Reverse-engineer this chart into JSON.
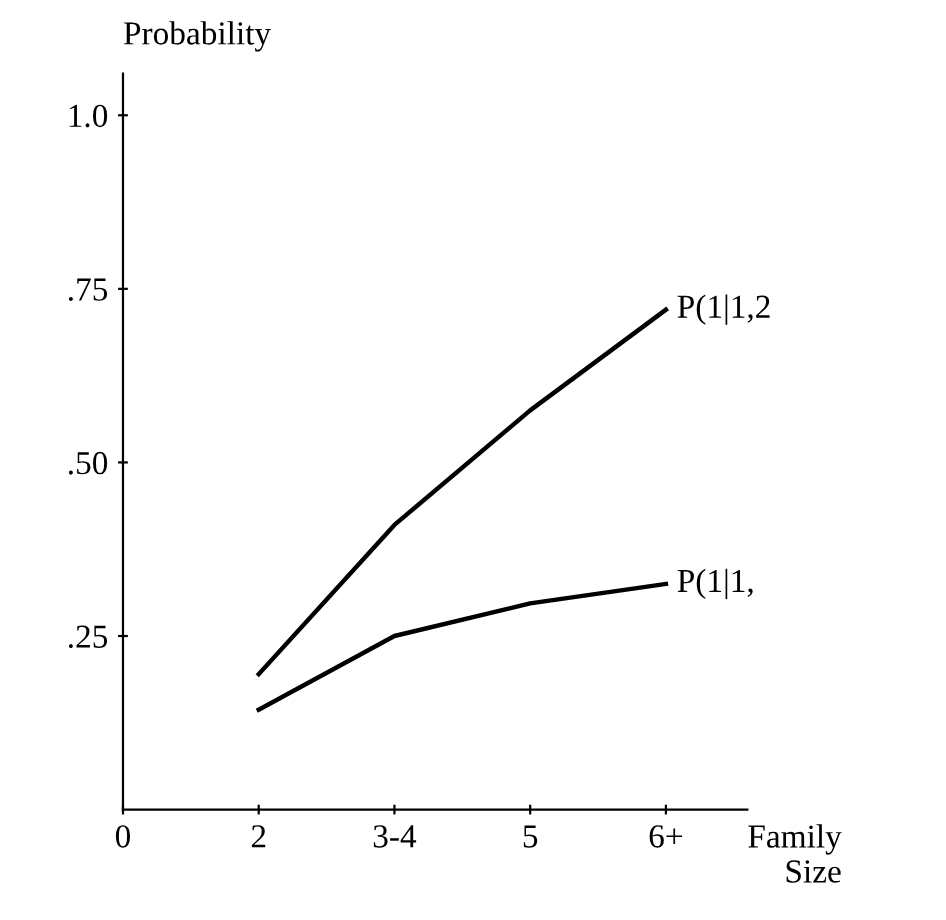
{
  "chart_data": {
    "type": "line",
    "ylabel": "Probability",
    "xlabel": "Family\nSize",
    "categories": [
      "0",
      "2",
      "3-4",
      "5",
      "6+"
    ],
    "ylim": [
      0,
      1.06
    ],
    "yticks": [
      {
        "value": 0.25,
        "label": ".25"
      },
      {
        "value": 0.5,
        "label": ".50"
      },
      {
        "value": 0.75,
        "label": ".75"
      },
      {
        "value": 1.0,
        "label": "1.0"
      }
    ],
    "series": [
      {
        "name": "P(1|1,2",
        "color": "#000000",
        "values": [
          null,
          0.195,
          0.41,
          0.575,
          0.72
        ]
      },
      {
        "name": "P(1|1,",
        "color": "#000000",
        "values": [
          null,
          0.144,
          0.25,
          0.297,
          0.325
        ]
      }
    ],
    "grid": false,
    "legend": false,
    "marker": "none",
    "line_style": "solid"
  }
}
